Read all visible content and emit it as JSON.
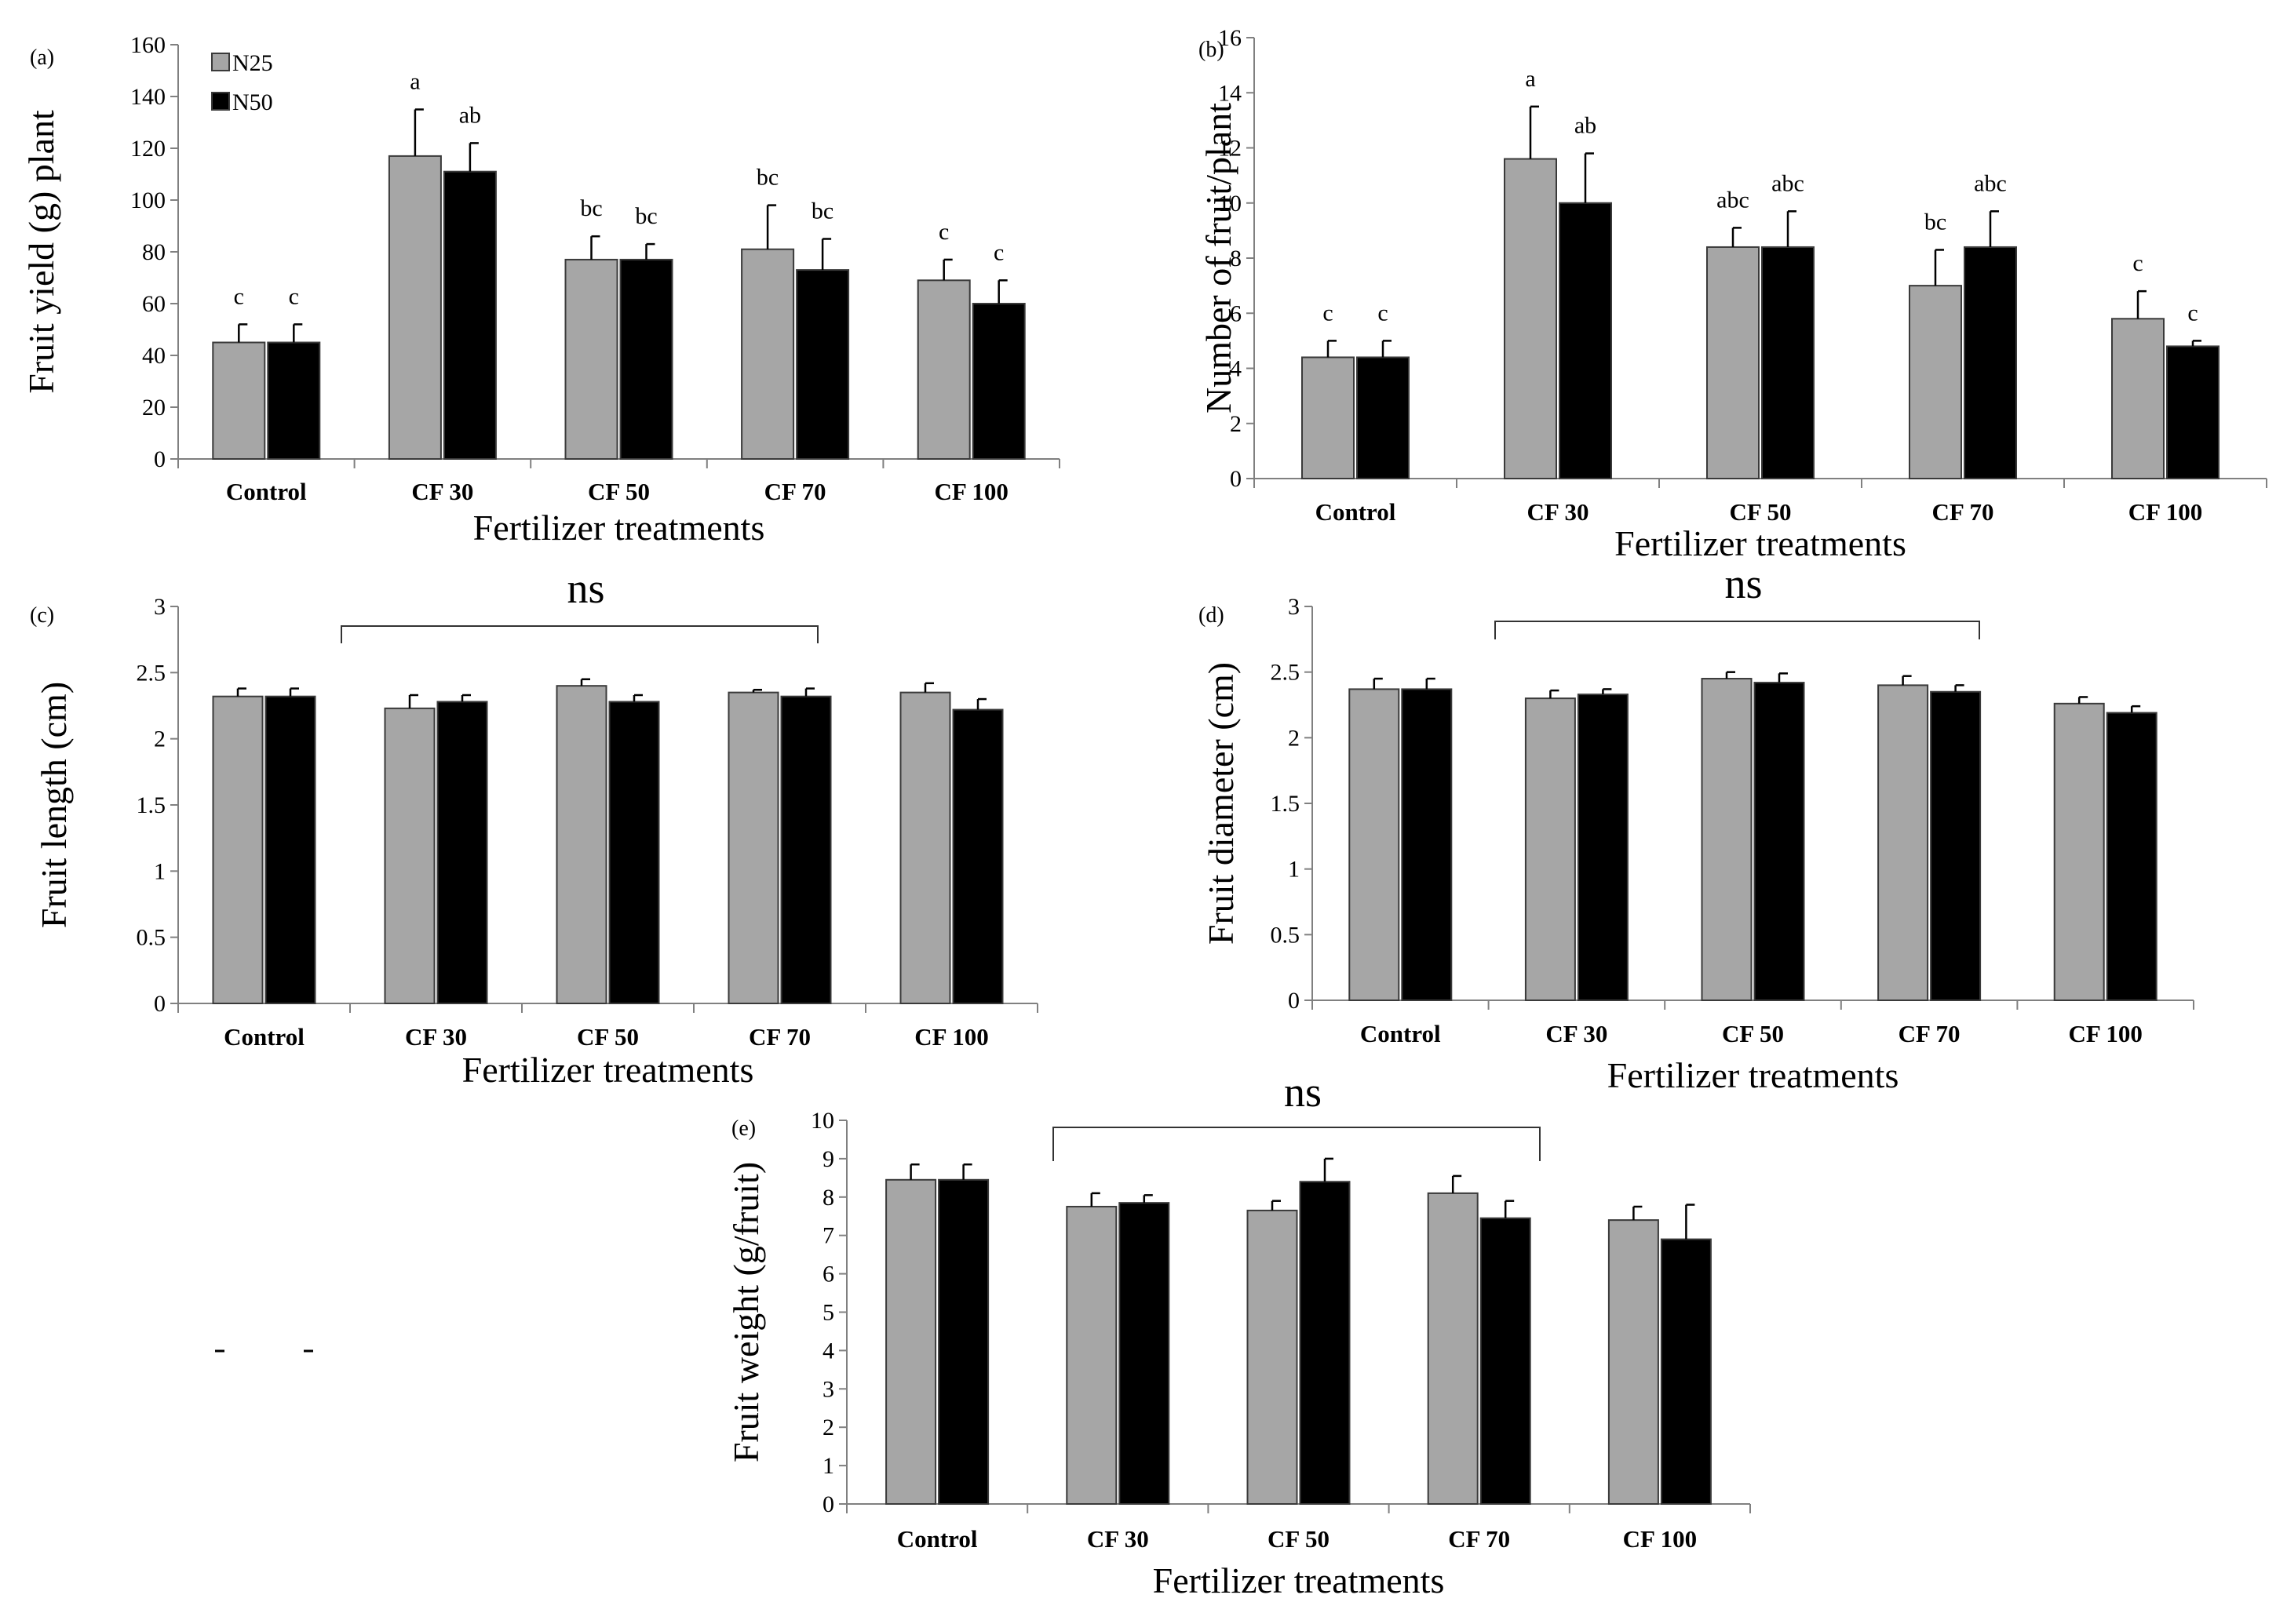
{
  "colors": {
    "N25": "#a6a6a6",
    "N50": "#000000",
    "axis": "#808080",
    "bar_edge": "#3a3a3a"
  },
  "legend": {
    "N25": "N25",
    "N50": "N50"
  },
  "chart_data": [
    {
      "id": "a",
      "type": "bar",
      "panel_label": "(a)",
      "categories": [
        "Control",
        "CF 30",
        "CF 50",
        "CF 70",
        "CF 100"
      ],
      "xlabel": "Fertilizer treatments",
      "ylabel": "Fruit yield (g) plant",
      "ylim": [
        0,
        160
      ],
      "yticks": [
        "0",
        "20",
        "40",
        "60",
        "80",
        "100",
        "120",
        "140",
        "160"
      ],
      "legend": "top-left",
      "series": [
        {
          "name": "N25",
          "values": [
            45,
            117,
            77,
            81,
            69
          ],
          "errors": [
            7,
            18,
            9,
            17,
            8
          ],
          "labels": [
            "c",
            "a",
            "bc",
            "bc",
            "c"
          ]
        },
        {
          "name": "N50",
          "values": [
            45,
            111,
            77,
            73,
            60
          ],
          "errors": [
            7,
            11,
            6,
            12,
            9
          ],
          "labels": [
            "c",
            "ab",
            "bc",
            "bc",
            "c"
          ]
        }
      ]
    },
    {
      "id": "b",
      "type": "bar",
      "panel_label": "(b)",
      "categories": [
        "Control",
        "CF 30",
        "CF 50",
        "CF 70",
        "CF 100"
      ],
      "xlabel": "Fertilizer treatments",
      "ylabel": "Number of fruit/plant",
      "ylim": [
        0,
        16
      ],
      "yticks": [
        "0",
        "2",
        "4",
        "6",
        "8",
        "10",
        "12",
        "14",
        "16"
      ],
      "series": [
        {
          "name": "N25",
          "values": [
            4.4,
            11.6,
            8.4,
            7.0,
            5.8
          ],
          "errors": [
            0.6,
            1.9,
            0.7,
            1.3,
            1.0
          ],
          "labels": [
            "c",
            "a",
            "abc",
            "bc",
            "c"
          ]
        },
        {
          "name": "N50",
          "values": [
            4.4,
            10.0,
            8.4,
            8.4,
            4.8
          ],
          "errors": [
            0.6,
            1.8,
            1.3,
            1.3,
            0.2
          ],
          "labels": [
            "c",
            "ab",
            "abc",
            "abc",
            "c"
          ]
        }
      ]
    },
    {
      "id": "c",
      "type": "bar",
      "panel_label": "(c)",
      "categories": [
        "Control",
        "CF 30",
        "CF 50",
        "CF 70",
        "CF 100"
      ],
      "xlabel": "Fertilizer treatments",
      "ylabel": "Fruit length (cm)",
      "ylim": [
        0,
        3
      ],
      "yticks": [
        "0",
        "0.5",
        "1",
        "1.5",
        "2",
        "2.5",
        "3"
      ],
      "significance": "ns",
      "series": [
        {
          "name": "N25",
          "values": [
            2.32,
            2.23,
            2.4,
            2.35,
            2.35
          ],
          "errors": [
            0.06,
            0.1,
            0.05,
            0.02,
            0.07
          ]
        },
        {
          "name": "N50",
          "values": [
            2.32,
            2.28,
            2.28,
            2.32,
            2.22
          ],
          "errors": [
            0.06,
            0.05,
            0.05,
            0.06,
            0.08
          ]
        }
      ]
    },
    {
      "id": "d",
      "type": "bar",
      "panel_label": "(d)",
      "categories": [
        "Control",
        "CF 30",
        "CF 50",
        "CF 70",
        "CF 100"
      ],
      "xlabel": "Fertilizer treatments",
      "ylabel": "Fruit diameter (cm)",
      "ylim": [
        0,
        3
      ],
      "yticks": [
        "0",
        "0.5",
        "1",
        "1.5",
        "2",
        "2.5",
        "3"
      ],
      "significance": "ns",
      "series": [
        {
          "name": "N25",
          "values": [
            2.37,
            2.3,
            2.45,
            2.4,
            2.26
          ],
          "errors": [
            0.08,
            0.06,
            0.05,
            0.07,
            0.05
          ]
        },
        {
          "name": "N50",
          "values": [
            2.37,
            2.33,
            2.42,
            2.35,
            2.19
          ],
          "errors": [
            0.08,
            0.04,
            0.07,
            0.05,
            0.05
          ]
        }
      ]
    },
    {
      "id": "e",
      "type": "bar",
      "panel_label": "(e)",
      "categories": [
        "Control",
        "CF 30",
        "CF 50",
        "CF 70",
        "CF 100"
      ],
      "xlabel": "Fertilizer treatments",
      "ylabel": "Fruit weight (g/fruit)",
      "ylim": [
        0,
        10
      ],
      "yticks": [
        "0",
        "1",
        "2",
        "3",
        "4",
        "5",
        "6",
        "7",
        "8",
        "9",
        "10"
      ],
      "significance": "ns",
      "series": [
        {
          "name": "N25",
          "values": [
            8.45,
            7.75,
            7.65,
            8.1,
            7.4
          ],
          "errors": [
            0.4,
            0.35,
            0.25,
            0.45,
            0.35
          ]
        },
        {
          "name": "N50",
          "values": [
            8.45,
            7.85,
            8.4,
            7.45,
            6.9
          ],
          "errors": [
            0.4,
            0.2,
            0.6,
            0.45,
            0.9
          ]
        }
      ]
    }
  ]
}
